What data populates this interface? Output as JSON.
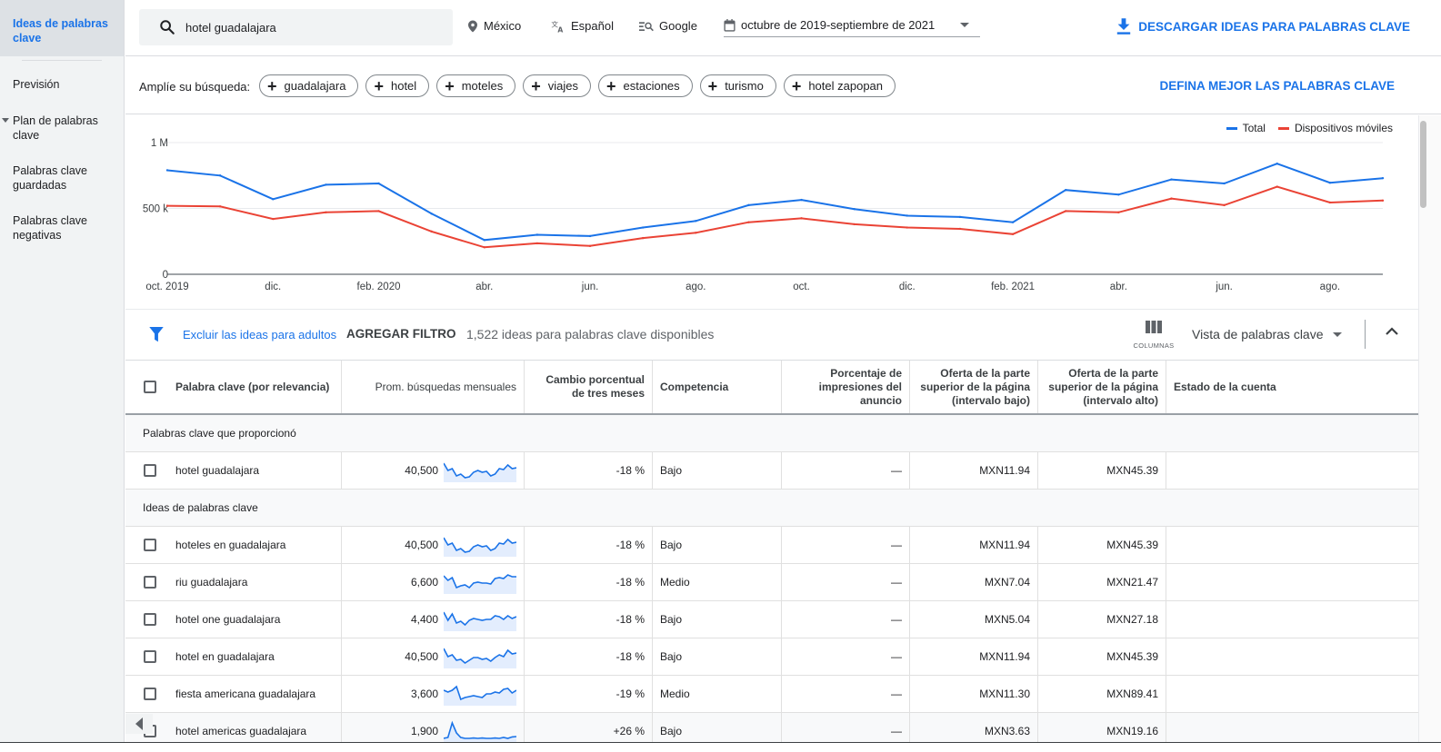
{
  "sidebar": {
    "items": [
      {
        "label": "Ideas de palabras clave"
      },
      {
        "label": "Previsión"
      },
      {
        "label": "Plan de palabras clave"
      },
      {
        "label": "Palabras clave guardadas"
      },
      {
        "label": "Palabras clave negativas"
      }
    ]
  },
  "topbar": {
    "search_value": "hotel guadalajara",
    "location": "México",
    "language": "Español",
    "network": "Google",
    "date_range": "octubre de 2019-septiembre de 2021",
    "download_label": "DESCARGAR IDEAS PARA PALABRAS CLAVE"
  },
  "refine": {
    "label": "Amplíe su búsqueda:",
    "chips": [
      "guadalajara",
      "hotel",
      "moteles",
      "viajes",
      "estaciones",
      "turismo",
      "hotel zapopan"
    ],
    "refine_label": "DEFINA MEJOR LAS PALABRAS CLAVE"
  },
  "chart_data": {
    "type": "line",
    "title": "",
    "xlabel": "",
    "ylabel": "",
    "ylim": [
      0,
      1000000
    ],
    "y_ticks": [
      {
        "value": 0,
        "label": "0"
      },
      {
        "value": 500000,
        "label": "500 k"
      },
      {
        "value": 1000000,
        "label": "1 M"
      }
    ],
    "x": [
      "2019-10",
      "2019-11",
      "2019-12",
      "2020-01",
      "2020-02",
      "2020-03",
      "2020-04",
      "2020-05",
      "2020-06",
      "2020-07",
      "2020-08",
      "2020-09",
      "2020-10",
      "2020-11",
      "2020-12",
      "2021-01",
      "2021-02",
      "2021-03",
      "2021-04",
      "2021-05",
      "2021-06",
      "2021-07",
      "2021-08",
      "2021-09"
    ],
    "x_tick_labels": [
      {
        "index": 0,
        "label": "oct. 2019"
      },
      {
        "index": 2,
        "label": "dic."
      },
      {
        "index": 4,
        "label": "feb. 2020"
      },
      {
        "index": 6,
        "label": "abr."
      },
      {
        "index": 8,
        "label": "jun."
      },
      {
        "index": 10,
        "label": "ago."
      },
      {
        "index": 12,
        "label": "oct."
      },
      {
        "index": 14,
        "label": "dic."
      },
      {
        "index": 16,
        "label": "feb. 2021"
      },
      {
        "index": 18,
        "label": "abr."
      },
      {
        "index": 20,
        "label": "jun."
      },
      {
        "index": 22,
        "label": "ago."
      }
    ],
    "series": [
      {
        "name": "Total",
        "color": "#1a73e8",
        "values": [
          790000,
          750000,
          570000,
          680000,
          690000,
          460000,
          260000,
          300000,
          290000,
          355000,
          405000,
          525000,
          565000,
          495000,
          445000,
          435000,
          395000,
          640000,
          605000,
          720000,
          690000,
          840000,
          695000,
          730000
        ]
      },
      {
        "name": "Dispositivos móviles",
        "color": "#ea4335",
        "values": [
          520000,
          515000,
          420000,
          470000,
          480000,
          325000,
          205000,
          235000,
          215000,
          275000,
          315000,
          395000,
          425000,
          380000,
          355000,
          345000,
          305000,
          480000,
          470000,
          575000,
          525000,
          665000,
          545000,
          560000
        ]
      }
    ],
    "grid": "horizontal",
    "legend": "top-right"
  },
  "filterbar": {
    "exclude_label": "Excluir las ideas para adultos",
    "add_filter_label": "AGREGAR FILTRO",
    "ideas_count": "1,522 ideas para palabras clave disponibles",
    "columns_label": "COLUMNAS",
    "view_label": "Vista de palabras clave"
  },
  "table": {
    "headers": {
      "keyword": "Palabra clave (por relevancia)",
      "avg": "Prom. búsquedas mensuales",
      "change": "Cambio porcentual de tres meses",
      "competition": "Competencia",
      "impression_share": "Porcentaje de impresiones del anuncio",
      "bid_low": "Oferta de la parte superior de la página (intervalo bajo)",
      "bid_high": "Oferta de la parte superior de la página (intervalo alto)",
      "account_state": "Estado de la cuenta"
    },
    "section_provided": "Palabras clave que proporcionó",
    "section_ideas": "Ideas de palabras clave",
    "provided_rows": [
      {
        "keyword": "hotel guadalajara",
        "avg": "40,500",
        "change": "-18 %",
        "competition": "Bajo",
        "impressions": "—",
        "bid_low": "MXN11.94",
        "bid_high": "MXN45.39",
        "state": "",
        "trend": [
          0.9,
          0.5,
          0.6,
          0.2,
          0.3,
          0.1,
          0.15,
          0.4,
          0.5,
          0.4,
          0.45,
          0.2,
          0.3,
          0.6,
          0.55,
          0.8,
          0.6,
          0.65
        ]
      }
    ],
    "idea_rows": [
      {
        "keyword": "hoteles en guadalajara",
        "avg": "40,500",
        "change": "-18 %",
        "competition": "Bajo",
        "impressions": "—",
        "bid_low": "MXN11.94",
        "bid_high": "MXN45.39",
        "state": "",
        "trend": [
          0.9,
          0.5,
          0.6,
          0.2,
          0.3,
          0.1,
          0.15,
          0.4,
          0.5,
          0.4,
          0.45,
          0.2,
          0.3,
          0.6,
          0.55,
          0.8,
          0.6,
          0.65
        ]
      },
      {
        "keyword": "riu guadalajara",
        "avg": "6,600",
        "change": "-18 %",
        "competition": "Medio",
        "impressions": "—",
        "bid_low": "MXN7.04",
        "bid_high": "MXN21.47",
        "state": "",
        "trend": [
          0.85,
          0.6,
          0.75,
          0.2,
          0.3,
          0.35,
          0.2,
          0.45,
          0.5,
          0.45,
          0.45,
          0.4,
          0.7,
          0.75,
          0.7,
          0.9,
          0.8,
          0.8
        ]
      },
      {
        "keyword": "hotel one guadalajara",
        "avg": "4,400",
        "change": "-18 %",
        "competition": "Bajo",
        "impressions": "—",
        "bid_low": "MXN5.04",
        "bid_high": "MXN27.18",
        "state": "",
        "trend": [
          0.9,
          0.45,
          0.8,
          0.3,
          0.4,
          0.2,
          0.45,
          0.55,
          0.5,
          0.45,
          0.5,
          0.5,
          0.7,
          0.65,
          0.5,
          0.7,
          0.55,
          0.65
        ]
      },
      {
        "keyword": "hotel en guadalajara",
        "avg": "40,500",
        "change": "-18 %",
        "competition": "Bajo",
        "impressions": "—",
        "bid_low": "MXN11.94",
        "bid_high": "MXN45.39",
        "state": "",
        "trend": [
          0.95,
          0.5,
          0.6,
          0.3,
          0.35,
          0.15,
          0.3,
          0.45,
          0.45,
          0.35,
          0.4,
          0.25,
          0.45,
          0.6,
          0.5,
          0.85,
          0.65,
          0.7
        ]
      },
      {
        "keyword": "fiesta americana guadalajara",
        "avg": "3,600",
        "change": "-19 %",
        "competition": "Medio",
        "impressions": "—",
        "bid_low": "MXN11.30",
        "bid_high": "MXN89.41",
        "state": "",
        "trend": [
          0.7,
          0.6,
          0.7,
          0.9,
          0.2,
          0.3,
          0.35,
          0.4,
          0.35,
          0.3,
          0.5,
          0.5,
          0.6,
          0.55,
          0.75,
          0.8,
          0.55,
          0.7
        ]
      },
      {
        "keyword": "hotel americas guadalajara",
        "avg": "1,900",
        "change": "+26 %",
        "competition": "Bajo",
        "impressions": "—",
        "bid_low": "MXN3.63",
        "bid_high": "MXN19.16",
        "state": "",
        "trend": [
          0.1,
          0.15,
          0.95,
          0.4,
          0.15,
          0.1,
          0.1,
          0.12,
          0.1,
          0.12,
          0.1,
          0.1,
          0.12,
          0.1,
          0.15,
          0.1,
          0.18,
          0.2
        ]
      }
    ]
  }
}
